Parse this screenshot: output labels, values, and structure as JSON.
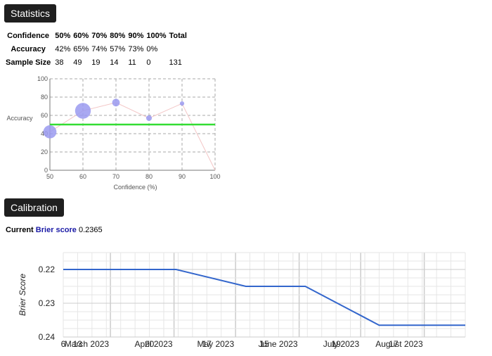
{
  "sections": {
    "statistics": "Statistics",
    "calibration": "Calibration"
  },
  "stats_table": {
    "headers": [
      "Confidence",
      "50%",
      "60%",
      "70%",
      "80%",
      "90%",
      "100%",
      "Total"
    ],
    "rows": [
      {
        "label": "Accuracy",
        "cells": [
          "42%",
          "65%",
          "74%",
          "57%",
          "73%",
          "0%",
          ""
        ]
      },
      {
        "label": "Sample Size",
        "cells": [
          "38",
          "49",
          "19",
          "14",
          "11",
          "0",
          "131"
        ]
      }
    ]
  },
  "brier": {
    "prefix": "Current",
    "link": "Brier score",
    "value": "0.2365"
  },
  "chart_data": [
    {
      "type": "scatter",
      "xlabel": "Confidence (%)",
      "ylabel": "Accuracy",
      "xlim": [
        50,
        100
      ],
      "ylim": [
        0,
        100
      ],
      "x_ticks": [
        50,
        60,
        70,
        80,
        90,
        100
      ],
      "y_ticks": [
        0,
        20,
        40,
        60,
        80,
        100
      ],
      "grid": true,
      "points": [
        {
          "x": 50,
          "y": 42,
          "n": 38
        },
        {
          "x": 60,
          "y": 65,
          "n": 49
        },
        {
          "x": 70,
          "y": 74,
          "n": 19
        },
        {
          "x": 80,
          "y": 57,
          "n": 14
        },
        {
          "x": 90,
          "y": 73,
          "n": 11
        },
        {
          "x": 100,
          "y": 0,
          "n": 0
        }
      ],
      "reference_line": {
        "y": 50
      },
      "colors": {
        "points": "#9a9af0",
        "connector": "#f3c6c6",
        "reference": "#33dd33",
        "grid": "#aaaaaa"
      }
    },
    {
      "type": "line",
      "ylabel": "Brier Score",
      "y_reversed": true,
      "ylim": [
        0.215,
        0.24
      ],
      "y_ticks": [
        0.22,
        0.23,
        0.24
      ],
      "x_ticks": [
        "6",
        "13",
        "March 2023",
        "20",
        "April 2023",
        "17",
        "May 2023",
        "15",
        "June 2023",
        "19",
        "July 2023",
        "17",
        "August 2023"
      ],
      "series": [
        {
          "x": [
            "2023-02-06",
            "2023-04-02",
            "2023-05-06",
            "2023-06-04",
            "2023-07-10",
            "2023-08-21"
          ],
          "values": [
            0.22,
            0.22,
            0.225,
            0.225,
            0.2365,
            0.2365
          ]
        }
      ],
      "grid": true,
      "colors": {
        "line": "#3366cc",
        "grid": "#e6e6e6",
        "major_grid": "#cccccc"
      }
    }
  ]
}
